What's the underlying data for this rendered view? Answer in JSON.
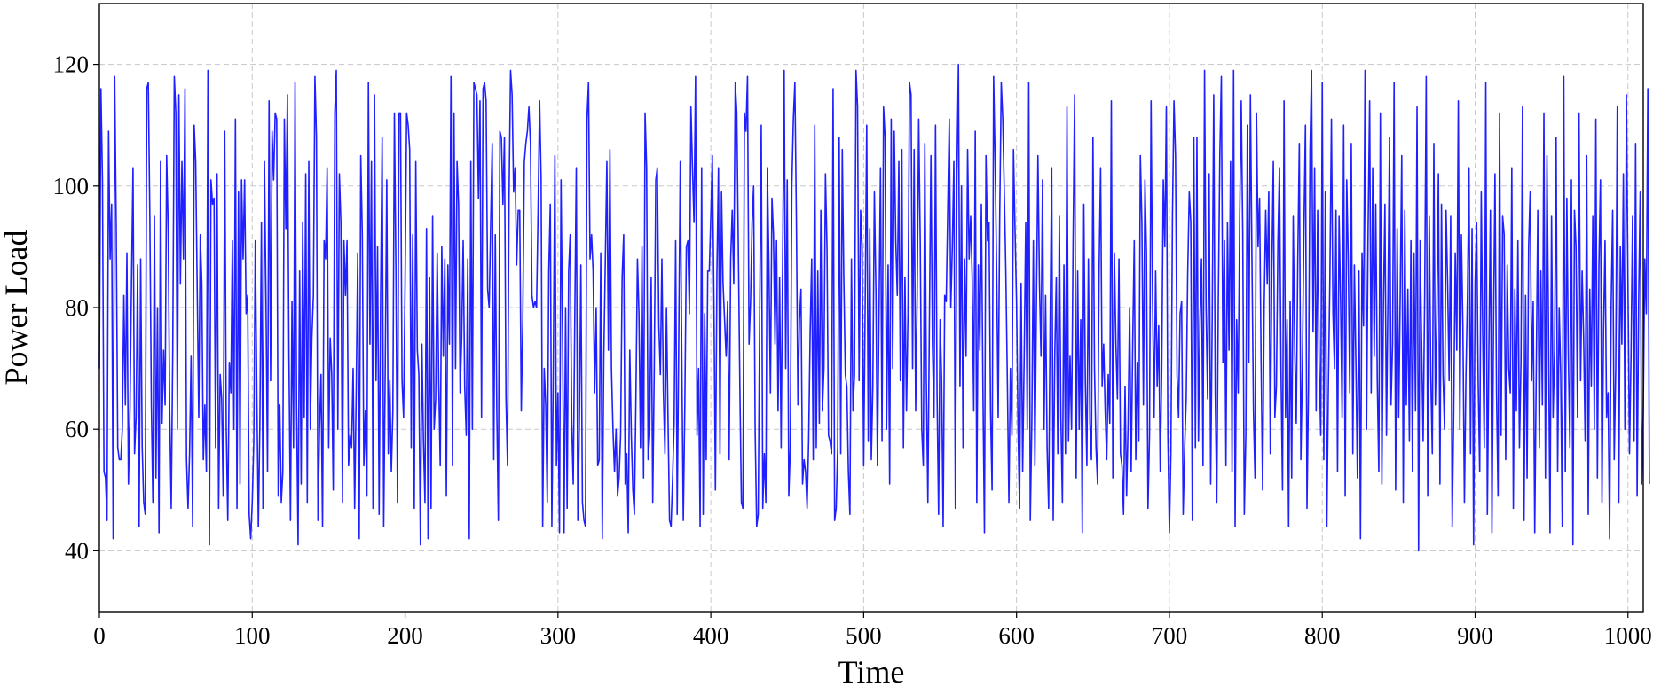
{
  "chart_data": {
    "type": "line",
    "title": "",
    "xlabel": "Time",
    "ylabel": "Power Load",
    "xlim": [
      0,
      1010
    ],
    "ylim": [
      30,
      130
    ],
    "xticks": [
      0,
      100,
      200,
      300,
      400,
      500,
      600,
      700,
      800,
      900,
      1000
    ],
    "yticks": [
      40,
      60,
      80,
      100,
      120
    ],
    "grid": true,
    "legend": "none",
    "line_color": "#1f1fff",
    "series": [
      {
        "x_start": 0,
        "x_step": 1,
        "values": [
          70,
          116,
          101,
          53,
          52,
          45,
          109,
          88,
          97,
          42,
          118,
          94,
          57,
          55,
          55,
          60,
          82,
          64,
          89,
          51,
          63,
          84,
          103,
          56,
          62,
          87,
          44,
          88,
          57,
          48,
          46,
          116,
          117,
          95,
          64,
          48,
          95,
          52,
          80,
          43,
          104,
          61,
          73,
          64,
          105,
          93,
          63,
          47,
          73,
          118,
          112,
          60,
          115,
          84,
          104,
          88,
          116,
          55,
          47,
          56,
          72,
          44,
          110,
          104,
          83,
          62,
          92,
          84,
          55,
          64,
          53,
          119,
          41,
          101,
          97,
          98,
          57,
          102,
          47,
          69,
          65,
          49,
          109,
          60,
          45,
          71,
          66,
          91,
          60,
          111,
          47,
          99,
          51,
          101,
          88,
          101,
          79,
          82,
          46,
          42,
          48,
          58,
          91,
          66,
          44,
          61,
          94,
          47,
          104,
          81,
          53,
          114,
          68,
          109,
          101,
          112,
          111,
          49,
          64,
          48,
          53,
          111,
          93,
          115,
          72,
          45,
          81,
          57,
          117,
          64,
          41,
          86,
          51,
          94,
          62,
          102,
          48,
          104,
          60,
          75,
          82,
          118,
          108,
          45,
          60,
          69,
          44,
          91,
          88,
          103,
          57,
          75,
          69,
          50,
          112,
          119,
          60,
          102,
          94,
          48,
          91,
          82,
          91,
          54,
          59,
          57,
          70,
          47,
          66,
          89,
          42,
          105,
          92,
          54,
          63,
          49,
          117,
          74,
          104,
          47,
          115,
          68,
          90,
          46,
          82,
          108,
          44,
          70,
          101,
          56,
          68,
          53,
          63,
          112,
          86,
          48,
          112,
          112,
          68,
          62,
          84,
          112,
          110,
          106,
          57,
          92,
          47,
          104,
          73,
          69,
          41,
          74,
          58,
          48,
          93,
          42,
          85,
          47,
          95,
          60,
          65,
          89,
          68,
          54,
          90,
          72,
          88,
          49,
          87,
          74,
          118,
          54,
          112,
          70,
          104,
          97,
          66,
          75,
          91,
          67,
          59,
          88,
          42,
          104,
          60,
          117,
          116,
          115,
          98,
          114,
          62,
          116,
          117,
          114,
          83,
          80,
          94,
          107,
          55,
          92,
          63,
          45,
          109,
          108,
          97,
          108,
          65,
          54,
          98,
          119,
          115,
          99,
          103,
          87,
          96,
          96,
          63,
          78,
          104,
          107,
          109,
          113,
          107,
          82,
          80,
          81,
          80,
          96,
          114,
          101,
          44,
          70,
          64,
          48,
          86,
          97,
          44,
          71,
          105,
          54,
          66,
          43,
          101,
          76,
          43,
          80,
          47,
          86,
          92,
          61,
          51,
          78,
          103,
          45,
          61,
          87,
          48,
          45,
          44,
          111,
          117,
          88,
          92,
          86,
          66,
          80,
          54,
          55,
          89,
          42,
          72,
          88,
          104,
          73,
          106,
          70,
          60,
          53,
          60,
          49,
          52,
          59,
          85,
          92,
          51,
          56,
          43,
          73,
          59,
          50,
          46,
          65,
          88,
          79,
          57,
          90,
          52,
          112,
          103,
          55,
          59,
          85,
          48,
          70,
          101,
          103,
          77,
          69,
          88,
          66,
          56,
          80,
          62,
          45,
          44,
          52,
          61,
          91,
          46,
          74,
          104,
          72,
          45,
          64,
          90,
          91,
          79,
          113,
          103,
          94,
          118,
          59,
          70,
          44,
          103,
          46,
          79,
          55,
          86,
          86,
          95,
          105,
          82,
          50,
          86,
          103,
          56,
          99,
          84,
          78,
          72,
          81,
          55,
          88,
          96,
          84,
          117,
          112,
          90,
          67,
          48,
          47,
          112,
          109,
          118,
          74,
          81,
          94,
          100,
          60,
          44,
          46,
          80,
          110,
          47,
          56,
          48,
          103,
          87,
          66,
          98,
          92,
          74,
          91,
          63,
          85,
          57,
          88,
          119,
          70,
          101,
          49,
          57,
          100,
          111,
          117,
          94,
          64,
          78,
          83,
          51,
          55,
          53,
          47,
          58,
          76,
          88,
          55,
          110,
          57,
          86,
          61,
          96,
          63,
          70,
          102,
          90,
          59,
          58,
          56,
          116,
          45,
          47,
          57,
          108,
          56,
          106,
          85,
          69,
          67,
          53,
          46,
          88,
          63,
          69,
          119,
          113,
          68,
          96,
          90,
          54,
          81,
          110,
          58,
          93,
          55,
          67,
          99,
          83,
          54,
          78,
          103,
          58,
          113,
          108,
          60,
          87,
          51,
          111,
          70,
          109,
          91,
          82,
          104,
          68,
          106,
          57,
          85,
          63,
          79,
          117,
          115,
          70,
          106,
          63,
          82,
          111,
          91,
          60,
          54,
          107,
          68,
          48,
          78,
          105,
          74,
          62,
          110,
          66,
          46,
          78,
          68,
          44,
          82,
          81,
          96,
          111,
          80,
          90,
          104,
          47,
          102,
          120,
          67,
          100,
          57,
          88,
          72,
          106,
          88,
          95,
          85,
          63,
          109,
          48,
          87,
          73,
          97,
          67,
          43,
          105,
          91,
          94,
          63,
          50,
          118,
          104,
          86,
          62,
          95,
          117,
          111,
          99,
          86,
          68,
          48,
          70,
          59,
          106,
          93,
          81,
          60,
          47,
          84,
          53,
          72,
          94,
          60,
          117,
          45,
          61,
          91,
          54,
          80,
          105,
          84,
          72,
          101,
          60,
          82,
          57,
          47,
          78,
          103,
          45,
          72,
          85,
          56,
          95,
          62,
          48,
          87,
          56,
          113,
          58,
          72,
          60,
          91,
          115,
          52,
          86,
          60,
          78,
          43,
          97,
          68,
          54,
          88,
          61,
          55,
          108,
          70,
          57,
          51,
          86,
          103,
          67,
          74,
          63,
          55,
          69,
          61,
          114,
          52,
          89,
          74,
          65,
          88,
          56,
          54,
          46,
          67,
          49,
          61,
          80,
          53,
          74,
          91,
          55,
          71,
          58,
          105,
          94,
          64,
          101,
          89,
          47,
          59,
          114,
          81,
          62,
          86,
          67,
          77,
          53,
          70,
          101,
          90,
          113,
          59,
          43,
          56,
          95,
          114,
          105,
          69,
          62,
          79,
          81,
          46,
          57,
          65,
          86,
          99,
          94,
          45,
          108,
          57,
          108,
          58,
          78,
          88,
          54,
          119,
          80,
          65,
          102,
          51,
          78,
          115,
          66,
          48,
          81,
          105,
          118,
          71,
          91,
          54,
          94,
          73,
          104,
          53,
          119,
          44,
          78,
          66,
          95,
          114,
          92,
          46,
          59,
          110,
          71,
          115,
          88,
          63,
          52,
          112,
          90,
          98,
          71,
          50,
          80,
          96,
          84,
          99,
          56,
          86,
          104,
          62,
          67,
          91,
          103,
          70,
          50,
          114,
          62,
          78,
          44,
          81,
          52,
          95,
          73,
          61,
          88,
          107,
          55,
          70,
          93,
          110,
          47,
          67,
          106,
          119,
          76,
          103,
          63,
          96,
          71,
          59,
          117,
          55,
          99,
          44,
          67,
          85,
          111,
          79,
          70,
          96,
          53,
          95,
          81,
          62,
          110,
          49,
          101,
          88,
          66,
          107,
          56,
          87,
          71,
          52,
          86,
          42,
          89,
          77,
          119,
          60,
          93,
          114,
          66,
          103,
          72,
          97,
          68,
          53,
          112,
          51,
          80,
          97,
          59,
          82,
          108,
          64,
          74,
          117,
          50,
          93,
          62,
          82,
          105,
          48,
          96,
          64,
          83,
          58,
          91,
          53,
          89,
          63,
          113,
          40,
          91,
          74,
          58,
          82,
          118,
          49,
          95,
          69,
          56,
          107,
          64,
          79,
          102,
          51,
          97,
          69,
          60,
          96,
          84,
          68,
          95,
          44,
          63,
          89,
          73,
          114,
          60,
          92,
          77,
          48,
          69,
          82,
          103,
          56,
          93,
          41,
          84,
          94,
          68,
          53,
          99,
          75,
          57,
          117,
          46,
          73,
          96,
          43,
          76,
          102,
          66,
          49,
          112,
          59,
          95,
          92,
          55,
          87,
          70,
          66,
          103,
          47,
          83,
          63,
          91,
          57,
          71,
          113,
          45,
          82,
          52,
          90,
          99,
          68,
          81,
          43,
          70,
          96,
          57,
          86,
          64,
          112,
          52,
          105,
          77,
          43,
          95,
          62,
          73,
          108,
          53,
          80,
          69,
          44,
          118,
          53,
          98,
          72,
          57,
          101,
          41,
          96,
          90,
          62,
          112,
          68,
          86,
          75,
          58,
          105,
          46,
          83,
          67,
          95,
          60,
          111,
          52,
          87,
          101,
          48,
          76,
          91,
          62,
          66,
          42,
          80,
          96,
          55,
          70,
          113,
          48,
          90,
          74,
          102,
          60,
          115,
          84,
          56,
          72,
          95,
          58,
          107,
          49,
          81,
          99,
          51,
          63,
          88,
          79,
          116,
          51
        ]
      }
    ]
  }
}
